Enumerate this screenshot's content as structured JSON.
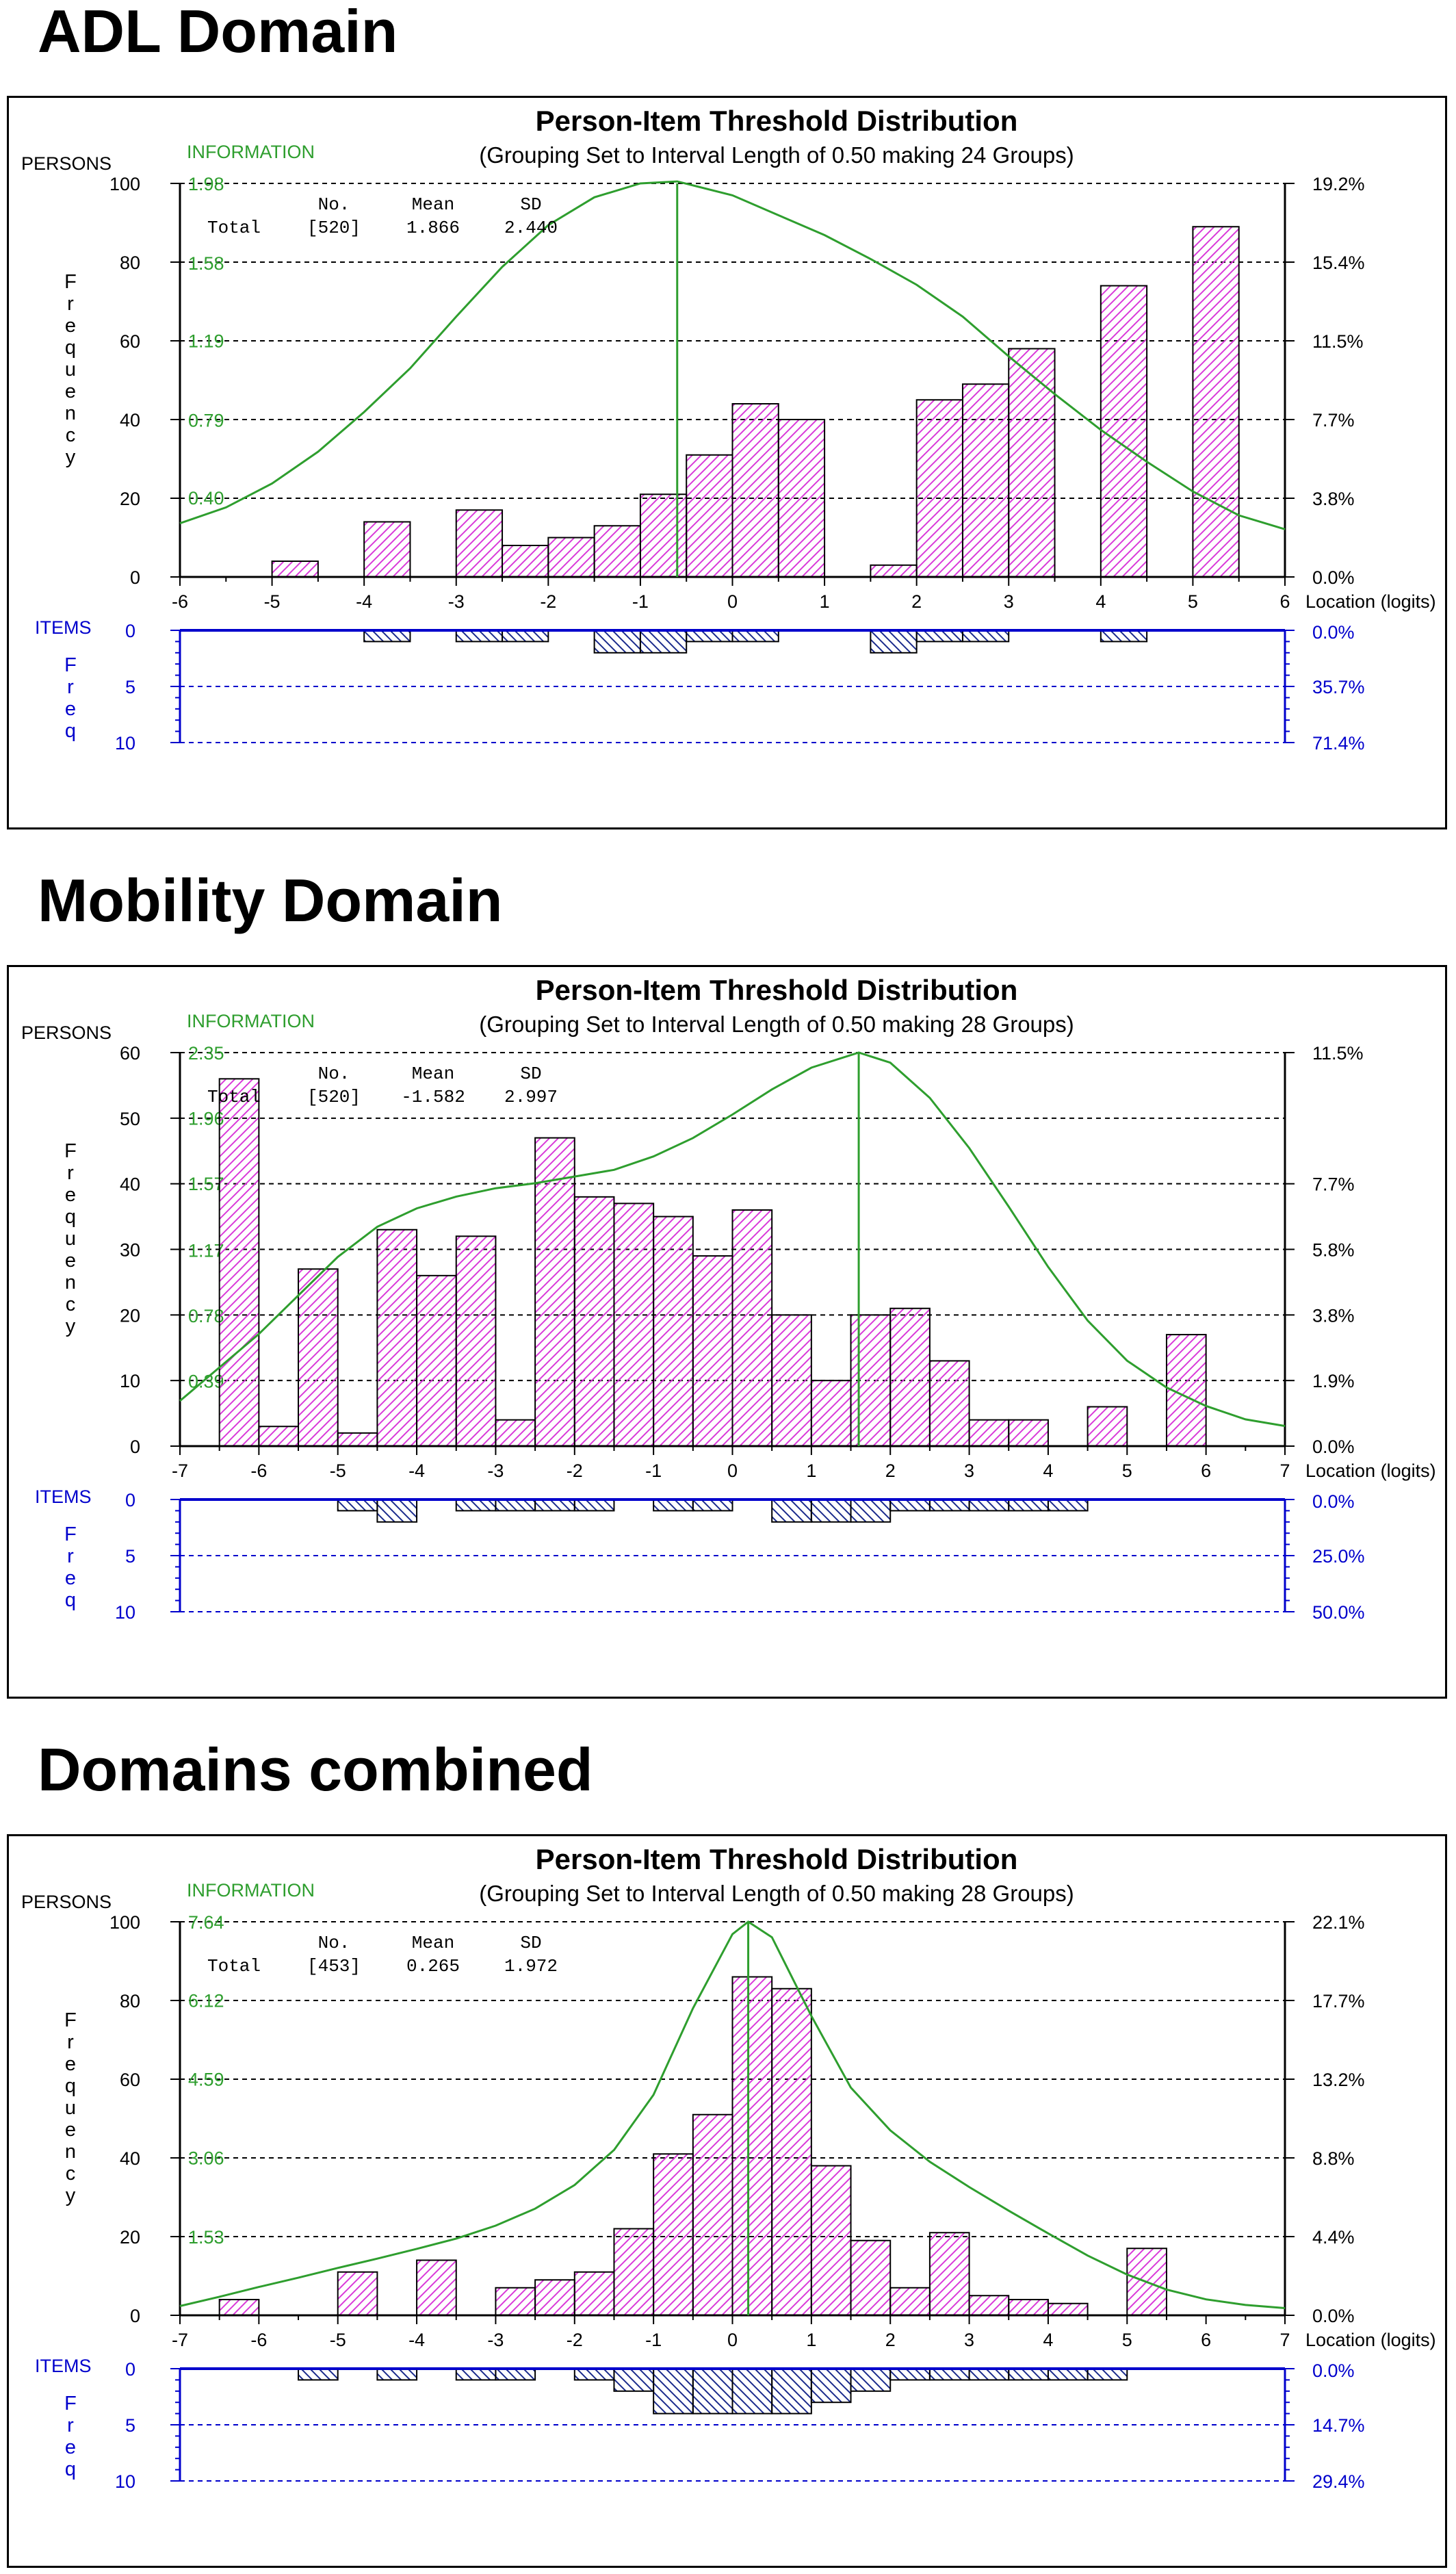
{
  "sections": [
    {
      "heading": "ADL Domain"
    },
    {
      "heading": "Mobility Domain"
    },
    {
      "heading": "Domains combined"
    }
  ],
  "colors": {
    "person_bar_hatch": "#d93ad9",
    "item_bar_hatch": "#1a2a8c",
    "information_curve": "#2e9e2e",
    "item_axis": "#0000cc",
    "text": "#000000"
  },
  "chart_data": [
    {
      "type": "bar",
      "title": "Person-Item Threshold Distribution",
      "subtitle": "(Grouping Set to Interval Length of  0.50  making  24  Groups)",
      "persons_label": "PERSONS",
      "information_label": "INFORMATION",
      "ylabel": "Frequency",
      "xlabel": "Location (logits)",
      "items_label": "ITEMS",
      "items_ylabel": "Freq",
      "xlim": [
        -6,
        6
      ],
      "xticks": [
        -6,
        -5,
        -4,
        -3,
        -2,
        -1,
        0,
        1,
        2,
        3,
        4,
        5,
        6
      ],
      "ylim": [
        0,
        100
      ],
      "yticks": [
        0,
        20,
        40,
        60,
        80,
        100
      ],
      "info_ticks": [
        "0.40",
        "0.79",
        "1.19",
        "1.58",
        "1.98"
      ],
      "pct_ticks": [
        "0.0%",
        "3.8%",
        "7.7%",
        "11.5%",
        "15.4%",
        "19.2%"
      ],
      "items_ylim": [
        0,
        10
      ],
      "items_yticks": [
        0,
        5,
        10
      ],
      "items_pct_ticks": [
        "0.0%",
        "35.7%",
        "71.4%"
      ],
      "stats_header": [
        "No.",
        "Mean",
        "SD"
      ],
      "stats_row": [
        "Total",
        "[520]",
        "1.866",
        "2.440"
      ],
      "bin_width": 0.5,
      "person_bars": [
        {
          "x": -5.0,
          "value": 4
        },
        {
          "x": -4.0,
          "value": 14
        },
        {
          "x": -3.0,
          "value": 17
        },
        {
          "x": -2.5,
          "value": 8
        },
        {
          "x": -2.0,
          "value": 10
        },
        {
          "x": -1.5,
          "value": 13
        },
        {
          "x": -1.0,
          "value": 21
        },
        {
          "x": -0.5,
          "value": 31
        },
        {
          "x": 0.0,
          "value": 44
        },
        {
          "x": 0.5,
          "value": 40
        },
        {
          "x": 1.5,
          "value": 3
        },
        {
          "x": 2.0,
          "value": 45
        },
        {
          "x": 2.5,
          "value": 49
        },
        {
          "x": 3.0,
          "value": 58
        },
        {
          "x": 4.0,
          "value": 74
        },
        {
          "x": 5.0,
          "value": 89
        }
      ],
      "item_bars": [
        {
          "x": -4.0,
          "value": 1
        },
        {
          "x": -3.0,
          "value": 1
        },
        {
          "x": -2.5,
          "value": 1
        },
        {
          "x": -1.5,
          "value": 2
        },
        {
          "x": -1.0,
          "value": 2
        },
        {
          "x": -0.5,
          "value": 1
        },
        {
          "x": 0.0,
          "value": 1
        },
        {
          "x": 1.5,
          "value": 2
        },
        {
          "x": 2.0,
          "value": 1
        },
        {
          "x": 2.5,
          "value": 1
        },
        {
          "x": 4.0,
          "value": 1
        }
      ],
      "info_curve_peak": -0.6,
      "info_curve": [
        [
          -6,
          0.27
        ],
        [
          -5.5,
          0.35
        ],
        [
          -5,
          0.47
        ],
        [
          -4.5,
          0.63
        ],
        [
          -4,
          0.83
        ],
        [
          -3.5,
          1.05
        ],
        [
          -3,
          1.31
        ],
        [
          -2.5,
          1.56
        ],
        [
          -2,
          1.77
        ],
        [
          -1.5,
          1.91
        ],
        [
          -1,
          1.98
        ],
        [
          -0.6,
          1.99
        ],
        [
          0,
          1.92
        ],
        [
          0.5,
          1.82
        ],
        [
          1,
          1.72
        ],
        [
          1.5,
          1.6
        ],
        [
          2,
          1.47
        ],
        [
          2.5,
          1.31
        ],
        [
          3,
          1.11
        ],
        [
          3.5,
          0.92
        ],
        [
          4,
          0.74
        ],
        [
          4.5,
          0.58
        ],
        [
          5,
          0.43
        ],
        [
          5.5,
          0.31
        ],
        [
          6,
          0.24
        ]
      ]
    },
    {
      "type": "bar",
      "title": "Person-Item Threshold Distribution",
      "subtitle": "(Grouping Set to Interval Length of  0.50  making  28  Groups)",
      "persons_label": "PERSONS",
      "information_label": "INFORMATION",
      "ylabel": "Frequency",
      "xlabel": "Location (logits)",
      "items_label": "ITEMS",
      "items_ylabel": "Freq",
      "xlim": [
        -7,
        7
      ],
      "xticks": [
        -7,
        -6,
        -5,
        -4,
        -3,
        -2,
        -1,
        0,
        1,
        2,
        3,
        4,
        5,
        6,
        7
      ],
      "ylim": [
        0,
        60
      ],
      "yticks": [
        0,
        10,
        20,
        30,
        40,
        50,
        60
      ],
      "info_ticks": [
        "0.39",
        "0.78",
        "1.17",
        "1.57",
        "1.96",
        "2.35"
      ],
      "pct_ticks": [
        "0.0%",
        "1.9%",
        "3.8%",
        "5.8%",
        "7.7%",
        "11.5%"
      ],
      "pct_tick_values": [
        0,
        10,
        20,
        30,
        40,
        60
      ],
      "items_ylim": [
        0,
        10
      ],
      "items_yticks": [
        0,
        5,
        10
      ],
      "items_pct_ticks": [
        "0.0%",
        "25.0%",
        "50.0%"
      ],
      "stats_header": [
        "No.",
        "Mean",
        "SD"
      ],
      "stats_row": [
        "Total",
        "[520]",
        "-1.582",
        "2.997"
      ],
      "bin_width": 0.5,
      "person_bars": [
        {
          "x": -6.5,
          "value": 56
        },
        {
          "x": -6.0,
          "value": 3
        },
        {
          "x": -5.5,
          "value": 27
        },
        {
          "x": -5.0,
          "value": 2
        },
        {
          "x": -4.5,
          "value": 33
        },
        {
          "x": -4.0,
          "value": 26
        },
        {
          "x": -3.5,
          "value": 32
        },
        {
          "x": -3.0,
          "value": 4
        },
        {
          "x": -2.5,
          "value": 47
        },
        {
          "x": -2.0,
          "value": 38
        },
        {
          "x": -1.5,
          "value": 37
        },
        {
          "x": -1.0,
          "value": 35
        },
        {
          "x": -0.5,
          "value": 29
        },
        {
          "x": 0.0,
          "value": 36
        },
        {
          "x": 0.5,
          "value": 20
        },
        {
          "x": 1.0,
          "value": 10
        },
        {
          "x": 1.5,
          "value": 20
        },
        {
          "x": 2.0,
          "value": 21
        },
        {
          "x": 2.5,
          "value": 13
        },
        {
          "x": 3.0,
          "value": 4
        },
        {
          "x": 3.5,
          "value": 4
        },
        {
          "x": 4.5,
          "value": 6
        },
        {
          "x": 5.5,
          "value": 17
        }
      ],
      "item_bars": [
        {
          "x": -5.0,
          "value": 1
        },
        {
          "x": -4.5,
          "value": 2
        },
        {
          "x": -3.5,
          "value": 1
        },
        {
          "x": -3.0,
          "value": 1
        },
        {
          "x": -2.5,
          "value": 1
        },
        {
          "x": -2.0,
          "value": 1
        },
        {
          "x": -1.0,
          "value": 1
        },
        {
          "x": -0.5,
          "value": 1
        },
        {
          "x": 0.5,
          "value": 2
        },
        {
          "x": 1.0,
          "value": 2
        },
        {
          "x": 1.5,
          "value": 2
        },
        {
          "x": 2.0,
          "value": 1
        },
        {
          "x": 2.5,
          "value": 1
        },
        {
          "x": 3.0,
          "value": 1
        },
        {
          "x": 3.5,
          "value": 1
        },
        {
          "x": 4.0,
          "value": 1
        }
      ],
      "info_curve_peak": 1.6,
      "info_curve": [
        [
          -7,
          0.27
        ],
        [
          -6.5,
          0.47
        ],
        [
          -6,
          0.67
        ],
        [
          -5.5,
          0.9
        ],
        [
          -5,
          1.13
        ],
        [
          -4.5,
          1.31
        ],
        [
          -4,
          1.42
        ],
        [
          -3.5,
          1.49
        ],
        [
          -3,
          1.54
        ],
        [
          -2.5,
          1.57
        ],
        [
          -2,
          1.61
        ],
        [
          -1.5,
          1.65
        ],
        [
          -1,
          1.73
        ],
        [
          -0.5,
          1.84
        ],
        [
          0,
          1.98
        ],
        [
          0.5,
          2.13
        ],
        [
          1,
          2.26
        ],
        [
          1.6,
          2.35
        ],
        [
          2,
          2.29
        ],
        [
          2.5,
          2.08
        ],
        [
          3,
          1.78
        ],
        [
          3.5,
          1.43
        ],
        [
          4,
          1.07
        ],
        [
          4.5,
          0.75
        ],
        [
          5,
          0.51
        ],
        [
          5.5,
          0.35
        ],
        [
          6,
          0.24
        ],
        [
          6.5,
          0.16
        ],
        [
          7,
          0.12
        ]
      ]
    },
    {
      "type": "bar",
      "title": "Person-Item Threshold Distribution",
      "subtitle": "(Grouping Set to Interval Length of  0.50  making  28  Groups)",
      "persons_label": "PERSONS",
      "information_label": "INFORMATION",
      "ylabel": "Frequency",
      "xlabel": "Location (logits)",
      "items_label": "ITEMS",
      "items_ylabel": "Freq",
      "xlim": [
        -7,
        7
      ],
      "xticks": [
        -7,
        -6,
        -5,
        -4,
        -3,
        -2,
        -1,
        0,
        1,
        2,
        3,
        4,
        5,
        6,
        7
      ],
      "ylim": [
        0,
        100
      ],
      "yticks": [
        0,
        20,
        40,
        60,
        80,
        100
      ],
      "info_ticks": [
        "1.53",
        "3.06",
        "4.59",
        "6.12",
        "7.64"
      ],
      "pct_ticks": [
        "0.0%",
        "4.4%",
        "8.8%",
        "13.2%",
        "17.7%",
        "22.1%"
      ],
      "items_ylim": [
        0,
        10
      ],
      "items_yticks": [
        0,
        5,
        10
      ],
      "items_pct_ticks": [
        "0.0%",
        "14.7%",
        "29.4%"
      ],
      "stats_header": [
        "No.",
        "Mean",
        "SD"
      ],
      "stats_row": [
        "Total",
        "[453]",
        "0.265",
        "1.972"
      ],
      "bin_width": 0.5,
      "person_bars": [
        {
          "x": -6.5,
          "value": 4
        },
        {
          "x": -5.0,
          "value": 11
        },
        {
          "x": -4.0,
          "value": 14
        },
        {
          "x": -3.0,
          "value": 7
        },
        {
          "x": -2.5,
          "value": 9
        },
        {
          "x": -2.0,
          "value": 11
        },
        {
          "x": -1.5,
          "value": 22
        },
        {
          "x": -1.0,
          "value": 41
        },
        {
          "x": -0.5,
          "value": 51
        },
        {
          "x": 0.0,
          "value": 86
        },
        {
          "x": 0.5,
          "value": 83
        },
        {
          "x": 1.0,
          "value": 38
        },
        {
          "x": 1.5,
          "value": 19
        },
        {
          "x": 2.0,
          "value": 7
        },
        {
          "x": 2.5,
          "value": 21
        },
        {
          "x": 3.0,
          "value": 5
        },
        {
          "x": 3.5,
          "value": 4
        },
        {
          "x": 4.0,
          "value": 3
        },
        {
          "x": 5.0,
          "value": 17
        }
      ],
      "item_bars": [
        {
          "x": -5.5,
          "value": 1
        },
        {
          "x": -4.5,
          "value": 1
        },
        {
          "x": -3.5,
          "value": 1
        },
        {
          "x": -3.0,
          "value": 1
        },
        {
          "x": -2.0,
          "value": 1
        },
        {
          "x": -1.5,
          "value": 2
        },
        {
          "x": -1.0,
          "value": 4
        },
        {
          "x": -0.5,
          "value": 4
        },
        {
          "x": 0.0,
          "value": 4
        },
        {
          "x": 0.5,
          "value": 4
        },
        {
          "x": 1.0,
          "value": 3
        },
        {
          "x": 1.5,
          "value": 2
        },
        {
          "x": 2.0,
          "value": 1
        },
        {
          "x": 2.5,
          "value": 1
        },
        {
          "x": 3.0,
          "value": 1
        },
        {
          "x": 3.5,
          "value": 1
        },
        {
          "x": 4.0,
          "value": 1
        },
        {
          "x": 4.5,
          "value": 1
        }
      ],
      "info_curve_peak": 0.2,
      "info_curve": [
        [
          -7,
          0.18
        ],
        [
          -6.5,
          0.36
        ],
        [
          -6,
          0.55
        ],
        [
          -5.5,
          0.73
        ],
        [
          -5,
          0.92
        ],
        [
          -4.5,
          1.1
        ],
        [
          -4,
          1.29
        ],
        [
          -3.5,
          1.49
        ],
        [
          -3,
          1.74
        ],
        [
          -2.5,
          2.07
        ],
        [
          -2,
          2.53
        ],
        [
          -1.5,
          3.21
        ],
        [
          -1,
          4.28
        ],
        [
          -0.5,
          5.96
        ],
        [
          0,
          7.4
        ],
        [
          0.2,
          7.64
        ],
        [
          0.5,
          7.34
        ],
        [
          1,
          5.81
        ],
        [
          1.5,
          4.42
        ],
        [
          2,
          3.59
        ],
        [
          2.5,
          2.98
        ],
        [
          3,
          2.49
        ],
        [
          3.5,
          2.03
        ],
        [
          4,
          1.59
        ],
        [
          4.5,
          1.16
        ],
        [
          5,
          0.79
        ],
        [
          5.5,
          0.5
        ],
        [
          6,
          0.31
        ],
        [
          6.5,
          0.2
        ],
        [
          7,
          0.14
        ]
      ]
    }
  ]
}
